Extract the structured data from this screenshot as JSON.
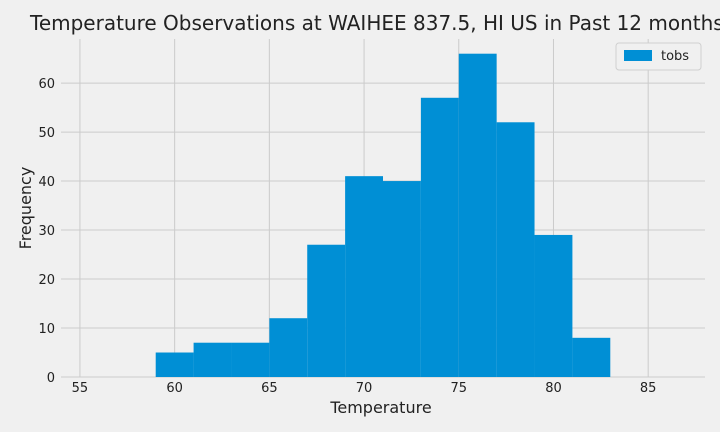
{
  "chart_data": {
    "type": "bar",
    "title": "Temperature Observations at WAIHEE 837.5, HI US in Past 12 months",
    "xlabel": "Temperature",
    "ylabel": "Frequency",
    "xlim": [
      54,
      88
    ],
    "ylim": [
      0,
      69
    ],
    "xticks": [
      55,
      60,
      65,
      70,
      75,
      80,
      85
    ],
    "yticks": [
      0,
      10,
      20,
      30,
      40,
      50,
      60
    ],
    "grid": true,
    "legend": "top-right",
    "series": [
      {
        "name": "tobs",
        "color": "#008fd5",
        "bins": [
          {
            "start": 59,
            "end": 61,
            "value": 5
          },
          {
            "start": 61,
            "end": 63,
            "value": 7
          },
          {
            "start": 63,
            "end": 65,
            "value": 7
          },
          {
            "start": 65,
            "end": 67,
            "value": 12
          },
          {
            "start": 67,
            "end": 69,
            "value": 27
          },
          {
            "start": 69,
            "end": 71,
            "value": 41
          },
          {
            "start": 71,
            "end": 73,
            "value": 40
          },
          {
            "start": 73,
            "end": 75,
            "value": 57
          },
          {
            "start": 75,
            "end": 77,
            "value": 66
          },
          {
            "start": 77,
            "end": 79,
            "value": 52
          },
          {
            "start": 79,
            "end": 81,
            "value": 29
          },
          {
            "start": 81,
            "end": 83,
            "value": 8
          }
        ]
      }
    ]
  }
}
